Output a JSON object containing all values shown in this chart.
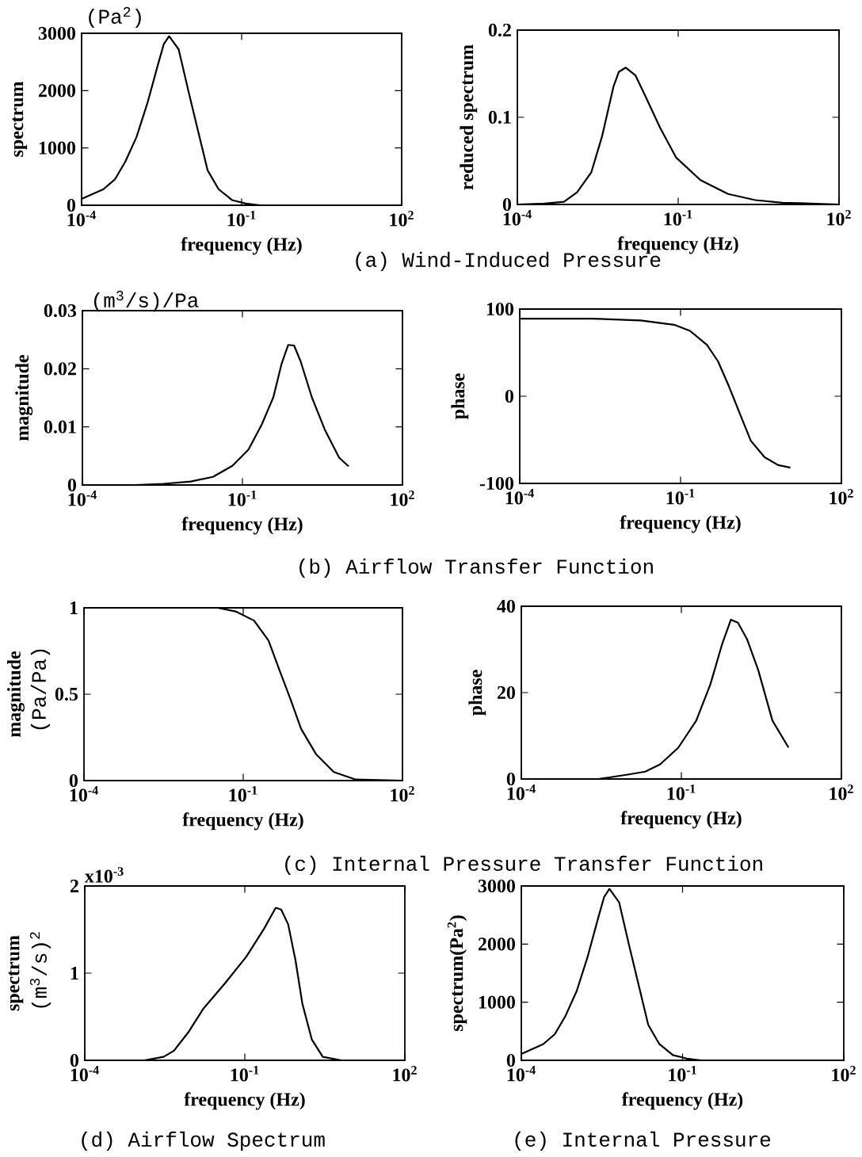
{
  "chart_data": [
    {
      "type": "line",
      "xlabel": "frequency (Hz)",
      "ylabel": "spectrum",
      "annotations": [
        "(Pa$^{2}$)",
        "(a) Wind-Induced Pressure"
      ],
      "log": "x",
      "xlim": [
        0.0001,
        100
      ],
      "xticks": [
        {
          "value": 0.0001,
          "label": "10$^{-4}$"
        },
        {
          "value": 0.1,
          "label": "10$^{-1}$"
        },
        {
          "value": 100,
          "label": "10$^{2}$"
        }
      ],
      "ylim": [
        0,
        3000
      ],
      "yticks": [
        0,
        1000,
        2000,
        3000
      ],
      "color": "#000000",
      "x": [
        0.0001,
        0.000257,
        0.00042,
        0.00066,
        0.00107,
        0.0017,
        0.00275,
        0.00347,
        0.00437,
        0.0066,
        0.01,
        0.0145,
        0.023,
        0.037,
        0.066,
        0.12,
        0.22,
        1,
        10,
        100
      ],
      "values": [
        110,
        280,
        450,
        760,
        1190,
        1770,
        2480,
        2810,
        2950,
        2720,
        2000,
        1380,
        610,
        280,
        90,
        30,
        0,
        0,
        0,
        0
      ]
    },
    {
      "type": "line",
      "xlabel": "frequency (Hz)",
      "ylabel": "reduced spectrum",
      "log": "x",
      "xlim": [
        0.0001,
        100
      ],
      "xticks": [
        {
          "value": 0.0001,
          "label": "10$^{-4}$"
        },
        {
          "value": 0.1,
          "label": "10$^{-1}$"
        },
        {
          "value": 100,
          "label": "10$^{2}$"
        }
      ],
      "ylim": [
        0,
        0.2
      ],
      "yticks": [
        0,
        0.1,
        0.2
      ],
      "color": "#000000",
      "x": [
        0.0001,
        0.00032,
        0.00074,
        0.0013,
        0.0024,
        0.0038,
        0.0062,
        0.0078,
        0.0105,
        0.016,
        0.025,
        0.046,
        0.091,
        0.26,
        0.85,
        2.75,
        8.9,
        100
      ],
      "values": [
        0,
        0.001,
        0.003,
        0.014,
        0.037,
        0.078,
        0.135,
        0.152,
        0.157,
        0.148,
        0.123,
        0.088,
        0.054,
        0.028,
        0.012,
        0.005,
        0.002,
        0
      ]
    },
    {
      "type": "line",
      "xlabel": "frequency (Hz)",
      "ylabel": "magnitude",
      "annotations": [
        "(m$^{3}$/s)/Pa",
        "(b) Airflow Transfer Function"
      ],
      "log": "x",
      "xlim": [
        0.0001,
        100
      ],
      "xticks": [
        {
          "value": 0.0001,
          "label": "10$^{-4}$"
        },
        {
          "value": 0.1,
          "label": "10$^{-1}$"
        },
        {
          "value": 100,
          "label": "10$^{2}$"
        }
      ],
      "ylim": [
        0,
        0.03
      ],
      "yticks": [
        0,
        0.01,
        0.02,
        0.03
      ],
      "color": "#000000",
      "x": [
        0.0001,
        0.001,
        0.0033,
        0.0107,
        0.028,
        0.065,
        0.13,
        0.23,
        0.38,
        0.54,
        0.72,
        0.93,
        1.23,
        2.0,
        3.55,
        6.5,
        9.8
      ],
      "values": [
        0,
        0,
        0.0002,
        0.0006,
        0.0014,
        0.0033,
        0.0061,
        0.0104,
        0.0151,
        0.0208,
        0.0241,
        0.024,
        0.0213,
        0.0151,
        0.0094,
        0.0047,
        0.0032
      ]
    },
    {
      "type": "line",
      "xlabel": "frequency (Hz)",
      "ylabel": "phase",
      "log": "x",
      "xlim": [
        0.0001,
        100
      ],
      "xticks": [
        {
          "value": 0.0001,
          "label": "10$^{-4}$"
        },
        {
          "value": 0.1,
          "label": "10$^{-1}$"
        },
        {
          "value": 100,
          "label": "10$^{2}$"
        }
      ],
      "ylim": [
        -100,
        100
      ],
      "yticks": [
        -100,
        0,
        100
      ],
      "color": "#000000",
      "x": [
        0.0001,
        0.0022,
        0.018,
        0.076,
        0.15,
        0.31,
        0.5,
        0.79,
        1.15,
        2.04,
        3.7,
        6.6,
        11.2
      ],
      "values": [
        89,
        89,
        87,
        82,
        75,
        59,
        40,
        12,
        -13,
        -51,
        -70,
        -79,
        -82
      ]
    },
    {
      "type": "line",
      "xlabel": "frequency (Hz)",
      "ylabel": "magnitude",
      "annotations": [
        "(Pa/Pa)",
        "(c) Internal Pressure Transfer Function"
      ],
      "log": "x",
      "xlim": [
        0.0001,
        100
      ],
      "xticks": [
        {
          "value": 0.0001,
          "label": "10$^{-4}$"
        },
        {
          "value": 0.1,
          "label": "10$^{-1}$"
        },
        {
          "value": 100,
          "label": "10$^{2}$"
        }
      ],
      "ylim": [
        0,
        1
      ],
      "yticks": [
        0,
        0.5,
        1
      ],
      "color": "#000000",
      "x": [
        0.0001,
        0.033,
        0.072,
        0.16,
        0.3,
        0.48,
        0.78,
        1.23,
        2.34,
        5.1,
        13.2,
        100
      ],
      "values": [
        1,
        1,
        0.979,
        0.926,
        0.81,
        0.64,
        0.47,
        0.3,
        0.154,
        0.049,
        0.006,
        0
      ]
    },
    {
      "type": "line",
      "xlabel": "frequency (Hz)",
      "ylabel": "phase",
      "log": "x",
      "xlim": [
        0.0001,
        100
      ],
      "xticks": [
        {
          "value": 0.0001,
          "label": "10$^{-4}$"
        },
        {
          "value": 0.1,
          "label": "10$^{-1}$"
        },
        {
          "value": 100,
          "label": "10$^{2}$"
        }
      ],
      "ylim": [
        0,
        40
      ],
      "yticks": [
        0,
        20,
        40
      ],
      "color": "#000000",
      "x": [
        0.0001,
        0.0028,
        0.0098,
        0.021,
        0.04,
        0.087,
        0.19,
        0.35,
        0.58,
        0.85,
        1.15,
        1.7,
        2.75,
        5.1,
        10.2
      ],
      "values": [
        0,
        0,
        1.0,
        1.7,
        3.4,
        7.2,
        13.5,
        21.9,
        31.2,
        36.9,
        36.2,
        32.4,
        25.3,
        13.5,
        7.3
      ]
    },
    {
      "type": "line",
      "xlabel": "frequency (Hz)",
      "ylabel": "spectrum",
      "annotations": [
        "(m$^{3}$/s)$^{2}$",
        "x10$^{-3}$",
        "(d) Airflow Spectrum"
      ],
      "log": "x",
      "xlim": [
        0.0001,
        100
      ],
      "xticks": [
        {
          "value": 0.0001,
          "label": "10$^{-4}$"
        },
        {
          "value": 0.1,
          "label": "10$^{-1}$"
        },
        {
          "value": 100,
          "label": "10$^{2}$"
        }
      ],
      "ylim": [
        0,
        2
      ],
      "yticks": [
        0,
        1,
        2
      ],
      "color": "#000000",
      "x": [
        0.0001,
        0.0013,
        0.003,
        0.0047,
        0.0087,
        0.0166,
        0.042,
        0.107,
        0.23,
        0.38,
        0.48,
        0.65,
        0.89,
        1.2,
        1.8,
        2.9,
        6.5,
        100
      ],
      "values": [
        0,
        0,
        0.04,
        0.11,
        0.32,
        0.59,
        0.88,
        1.19,
        1.51,
        1.75,
        1.73,
        1.56,
        1.15,
        0.65,
        0.24,
        0.04,
        0,
        0
      ]
    },
    {
      "type": "line",
      "xlabel": "frequency (Hz)",
      "ylabel": "spectrum(Pa$^{2}$)",
      "annotations": [
        "(e) Internal Pressure"
      ],
      "log": "x",
      "xlim": [
        0.0001,
        100
      ],
      "xticks": [
        {
          "value": 0.0001,
          "label": "10$^{-4}$"
        },
        {
          "value": 0.1,
          "label": "10$^{-1}$"
        },
        {
          "value": 100,
          "label": "10$^{2}$"
        }
      ],
      "ylim": [
        0,
        3000
      ],
      "yticks": [
        0,
        1000,
        2000,
        3000
      ],
      "color": "#000000",
      "x": [
        0.0001,
        0.000257,
        0.00042,
        0.00066,
        0.00107,
        0.0017,
        0.00275,
        0.00347,
        0.00437,
        0.0066,
        0.01,
        0.0145,
        0.023,
        0.037,
        0.066,
        0.12,
        0.22,
        1,
        10,
        100
      ],
      "values": [
        110,
        280,
        450,
        760,
        1190,
        1770,
        2480,
        2810,
        2950,
        2720,
        2000,
        1380,
        610,
        280,
        90,
        30,
        0,
        0,
        0,
        0
      ]
    }
  ]
}
